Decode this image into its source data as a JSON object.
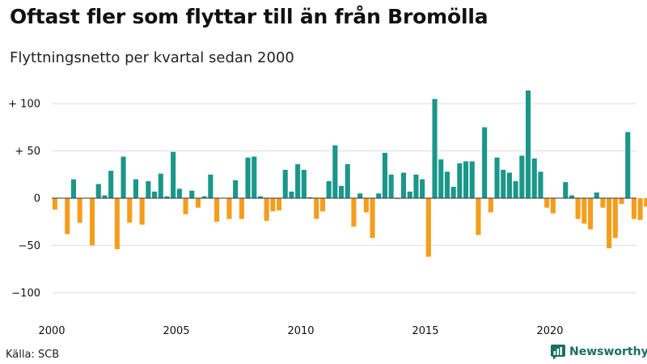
{
  "header": {
    "title": "Oftast fler som flyttar till än från Bromölla",
    "subtitle": "Flyttningsnetto per kvartal sedan 2000"
  },
  "footer": {
    "source": "Källa: SCB",
    "brand": "Newsworthy"
  },
  "colors": {
    "positive": "#1a978a",
    "negative": "#f59d1c",
    "grid": "#dddddd",
    "baseline": "#333333",
    "brand": "#1b6e62"
  },
  "chart_data": {
    "type": "bar",
    "title": "Oftast fler som flyttar till än från Bromölla",
    "subtitle": "Flyttningsnetto per kvartal sedan 2000",
    "x_start": 2000,
    "periods_per_year": 4,
    "xlim": [
      2000,
      2024
    ],
    "ylim": [
      -110,
      115
    ],
    "y_ticks": [
      {
        "value": 100,
        "label": "+ 100"
      },
      {
        "value": 50,
        "label": "+ 50"
      },
      {
        "value": 0,
        "label": "0"
      },
      {
        "value": -50,
        "label": "−50"
      },
      {
        "value": -100,
        "label": "−100"
      }
    ],
    "x_ticks": [
      {
        "value": 2000,
        "label": "2000"
      },
      {
        "value": 2005,
        "label": "2005"
      },
      {
        "value": 2010,
        "label": "2010"
      },
      {
        "value": 2015,
        "label": "2015"
      },
      {
        "value": 2020,
        "label": "2020"
      }
    ],
    "grid": true,
    "values": [
      -12,
      0,
      -38,
      20,
      -26,
      0,
      -50,
      15,
      3,
      29,
      -54,
      44,
      -26,
      20,
      -28,
      18,
      7,
      26,
      2,
      49,
      10,
      -17,
      8,
      -10,
      2,
      25,
      -25,
      0,
      -22,
      19,
      -22,
      43,
      44,
      2,
      -24,
      -14,
      -13,
      30,
      7,
      36,
      30,
      1,
      -22,
      -14,
      18,
      56,
      13,
      36,
      -30,
      5,
      -15,
      -42,
      5,
      48,
      25,
      -1,
      27,
      7,
      25,
      20,
      -62,
      105,
      41,
      28,
      12,
      37,
      39,
      39,
      -39,
      75,
      -15,
      43,
      30,
      27,
      18,
      45,
      114,
      42,
      28,
      -10,
      -16,
      0,
      17,
      3,
      -22,
      -27,
      -33,
      6,
      -10,
      -53,
      -42,
      -6,
      70,
      -22,
      -23,
      -9,
      10
    ]
  }
}
